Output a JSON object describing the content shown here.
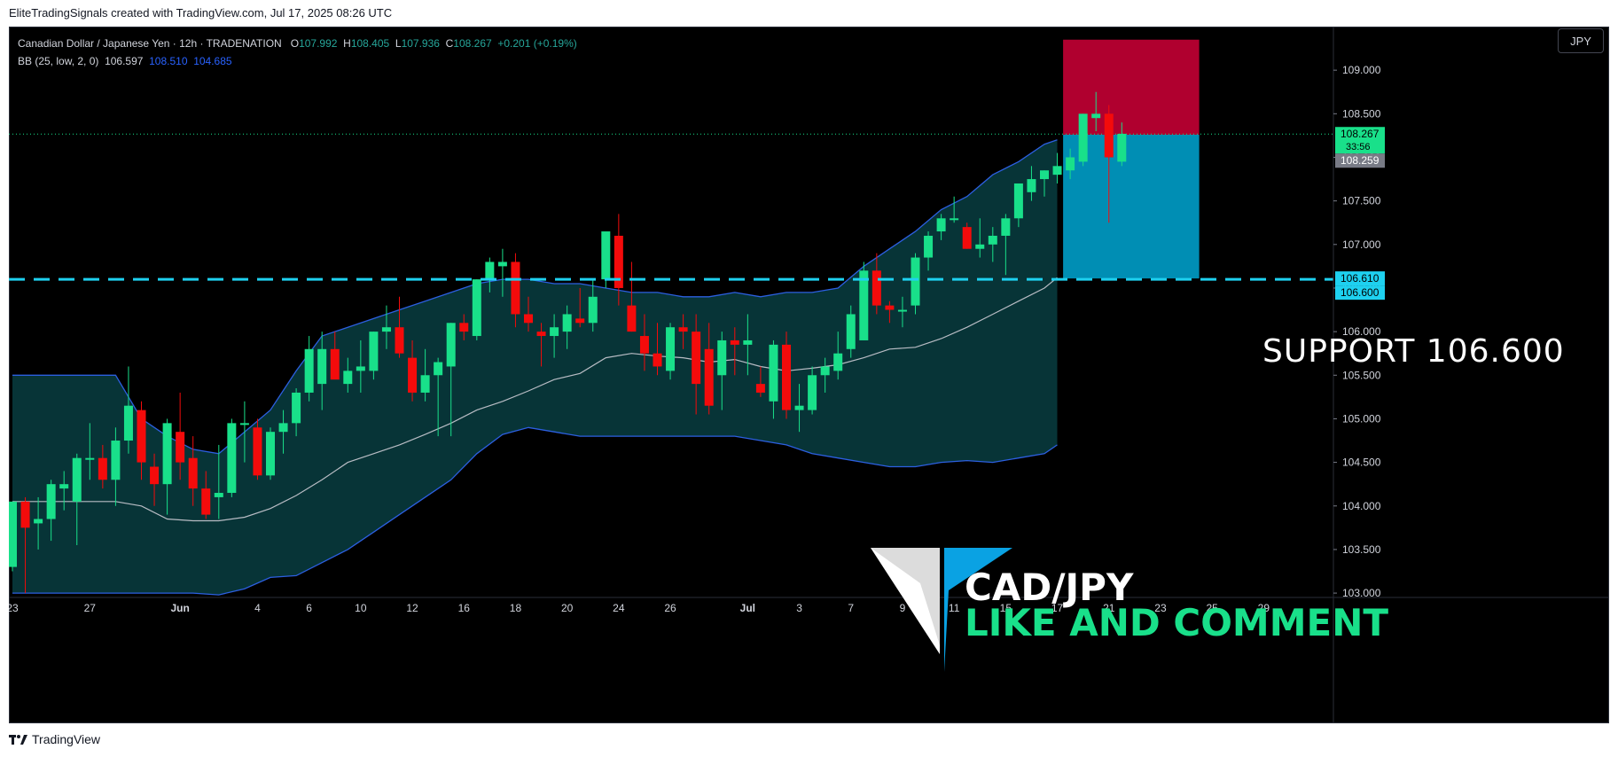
{
  "header": {
    "text": "EliteTradingSignals created with TradingView.com, Jul 17, 2025 08:26 UTC"
  },
  "legend": {
    "symbol": "Canadian Dollar / Japanese Yen · 12h · TRADENATION",
    "o_label": "O",
    "o_val": "107.992",
    "h_label": "H",
    "h_val": "108.405",
    "l_label": "L",
    "l_val": "107.936",
    "c_label": "C",
    "c_val": "108.267",
    "chg": "+0.201 (+0.19%)",
    "bb_label": "BB (25, low, 2, 0)",
    "bb_mid": "106.597",
    "bb_upper": "108.510",
    "bb_lower": "104.685"
  },
  "currency_button": "JPY",
  "annotations": {
    "support_text": "SUPPORT  106.600",
    "overlay_title": "CAD/JPY",
    "overlay_subtitle": "LIKE AND COMMENT"
  },
  "footer": {
    "brand": "TradingView"
  },
  "colors": {
    "bull": "#19e08a",
    "bear": "#f40b0b",
    "band_fill": "#073437",
    "band_line": "#2c5fe0",
    "basis_line": "#b8bcc4",
    "support_line": "#1ed1f0",
    "stop_zone": "#b0002f",
    "target_zone": "#008eb4"
  },
  "chart_data": {
    "type": "candlestick",
    "timeframe": "12h",
    "y_axis": {
      "range": [
        102.95,
        109.5
      ],
      "ticks": [
        "109.000",
        "108.500",
        "108.000",
        "107.500",
        "107.000",
        "106.500",
        "106.000",
        "105.500",
        "105.000",
        "104.500",
        "104.000",
        "103.500",
        "103.000"
      ],
      "price_labels": [
        {
          "text": "108.267",
          "sub": "33:56",
          "value": 108.267,
          "style": "current"
        },
        {
          "text": "108.259",
          "value": 108.259,
          "style": "grey"
        },
        {
          "text": "106.610",
          "value": 106.61,
          "style": "support"
        },
        {
          "text": "106.600",
          "value": 106.6,
          "style": "support"
        }
      ]
    },
    "x_axis": {
      "labels": [
        {
          "text": "23",
          "bar": 0
        },
        {
          "text": "27",
          "bar": 6
        },
        {
          "text": "Jun",
          "bar": 13
        },
        {
          "text": "4",
          "bar": 19
        },
        {
          "text": "6",
          "bar": 23
        },
        {
          "text": "10",
          "bar": 27
        },
        {
          "text": "12",
          "bar": 31
        },
        {
          "text": "16",
          "bar": 35
        },
        {
          "text": "18",
          "bar": 39
        },
        {
          "text": "20",
          "bar": 43
        },
        {
          "text": "24",
          "bar": 47
        },
        {
          "text": "26",
          "bar": 51
        },
        {
          "text": "Jul",
          "bar": 57
        },
        {
          "text": "3",
          "bar": 61
        },
        {
          "text": "7",
          "bar": 65
        },
        {
          "text": "9",
          "bar": 69
        },
        {
          "text": "11",
          "bar": 73
        },
        {
          "text": "15",
          "bar": 77
        },
        {
          "text": "17",
          "bar": 81
        },
        {
          "text": "21",
          "bar": 85
        },
        {
          "text": "23",
          "bar": 89
        },
        {
          "text": "25",
          "bar": 93
        },
        {
          "text": "29",
          "bar": 97
        }
      ]
    },
    "candles": [
      [
        103.3,
        104.05,
        103.25,
        104.05
      ],
      [
        104.05,
        104.1,
        103.0,
        103.75
      ],
      [
        103.8,
        104.1,
        103.5,
        103.85
      ],
      [
        103.85,
        104.3,
        103.6,
        104.25
      ],
      [
        104.2,
        104.4,
        103.95,
        104.25
      ],
      [
        104.05,
        104.6,
        103.55,
        104.55
      ],
      [
        104.55,
        104.95,
        104.3,
        104.55
      ],
      [
        104.55,
        104.7,
        104.2,
        104.3
      ],
      [
        104.3,
        104.9,
        104.0,
        104.75
      ],
      [
        104.75,
        105.6,
        104.6,
        105.15
      ],
      [
        105.1,
        105.2,
        104.3,
        104.5
      ],
      [
        104.45,
        104.6,
        104.0,
        104.25
      ],
      [
        104.25,
        105.0,
        103.9,
        104.95
      ],
      [
        104.85,
        105.3,
        104.3,
        104.5
      ],
      [
        104.55,
        104.8,
        104.0,
        104.2
      ],
      [
        104.2,
        104.4,
        103.85,
        103.9
      ],
      [
        104.1,
        104.7,
        103.85,
        104.15
      ],
      [
        104.15,
        105.0,
        104.1,
        104.95
      ],
      [
        104.95,
        105.2,
        104.5,
        104.95
      ],
      [
        104.9,
        105.0,
        104.3,
        104.35
      ],
      [
        104.35,
        104.9,
        104.3,
        104.85
      ],
      [
        104.85,
        105.1,
        104.6,
        104.95
      ],
      [
        104.95,
        105.35,
        104.8,
        105.3
      ],
      [
        105.3,
        105.95,
        105.2,
        105.8
      ],
      [
        105.4,
        106.0,
        105.1,
        105.8
      ],
      [
        105.8,
        106.0,
        105.5,
        105.45
      ],
      [
        105.4,
        105.7,
        105.3,
        105.55
      ],
      [
        105.55,
        105.9,
        105.3,
        105.6
      ],
      [
        105.55,
        106.0,
        105.45,
        106.0
      ],
      [
        106.0,
        106.3,
        105.8,
        106.05
      ],
      [
        106.05,
        106.4,
        105.7,
        105.75
      ],
      [
        105.7,
        105.9,
        105.2,
        105.3
      ],
      [
        105.3,
        105.8,
        105.2,
        105.5
      ],
      [
        105.5,
        105.7,
        104.8,
        105.65
      ],
      [
        105.6,
        106.1,
        104.8,
        106.1
      ],
      [
        106.1,
        106.2,
        105.9,
        106.0
      ],
      [
        105.95,
        106.6,
        105.9,
        106.6
      ],
      [
        106.6,
        106.85,
        106.45,
        106.8
      ],
      [
        106.75,
        106.95,
        106.4,
        106.8
      ],
      [
        106.8,
        106.9,
        106.05,
        106.2
      ],
      [
        106.2,
        106.4,
        106.0,
        106.1
      ],
      [
        106.0,
        106.1,
        105.6,
        105.95
      ],
      [
        105.95,
        106.2,
        105.7,
        106.05
      ],
      [
        106.0,
        106.3,
        105.8,
        106.2
      ],
      [
        106.15,
        106.5,
        106.05,
        106.1
      ],
      [
        106.1,
        106.6,
        106.0,
        106.4
      ],
      [
        106.6,
        107.1,
        106.5,
        107.15
      ],
      [
        107.1,
        107.35,
        106.3,
        106.5
      ],
      [
        106.3,
        106.8,
        106.0,
        106.0
      ],
      [
        105.95,
        106.2,
        105.55,
        105.75
      ],
      [
        105.75,
        106.1,
        105.5,
        105.6
      ],
      [
        105.55,
        106.1,
        105.45,
        106.05
      ],
      [
        106.05,
        106.2,
        105.8,
        106.0
      ],
      [
        106.0,
        106.2,
        105.05,
        105.4
      ],
      [
        105.8,
        106.1,
        105.05,
        105.15
      ],
      [
        105.5,
        106.0,
        105.1,
        105.9
      ],
      [
        105.9,
        106.05,
        105.5,
        105.85
      ],
      [
        105.85,
        106.2,
        105.5,
        105.9
      ],
      [
        105.4,
        105.6,
        105.25,
        105.3
      ],
      [
        105.2,
        105.9,
        105.0,
        105.85
      ],
      [
        105.85,
        106.0,
        105.0,
        105.1
      ],
      [
        105.1,
        105.4,
        104.85,
        105.15
      ],
      [
        105.1,
        105.6,
        105.05,
        105.5
      ],
      [
        105.5,
        105.7,
        105.3,
        105.6
      ],
      [
        105.55,
        106.0,
        105.45,
        105.75
      ],
      [
        105.8,
        106.3,
        105.7,
        106.2
      ],
      [
        105.9,
        106.8,
        105.9,
        106.7
      ],
      [
        106.7,
        106.9,
        106.2,
        106.3
      ],
      [
        106.3,
        106.35,
        106.1,
        106.25
      ],
      [
        106.25,
        106.4,
        106.05,
        106.25
      ],
      [
        106.3,
        106.9,
        106.2,
        106.85
      ],
      [
        106.85,
        107.15,
        106.7,
        107.1
      ],
      [
        107.15,
        107.35,
        107.05,
        107.3
      ],
      [
        107.3,
        107.55,
        107.25,
        107.3
      ],
      [
        107.2,
        107.25,
        106.95,
        106.95
      ],
      [
        106.95,
        107.3,
        106.85,
        107.0
      ],
      [
        107.0,
        107.2,
        106.8,
        107.1
      ],
      [
        107.1,
        107.35,
        106.65,
        107.3
      ],
      [
        107.3,
        107.7,
        107.2,
        107.7
      ],
      [
        107.6,
        107.9,
        107.5,
        107.75
      ],
      [
        107.75,
        107.85,
        107.55,
        107.85
      ],
      [
        107.8,
        108.05,
        107.7,
        107.9
      ],
      [
        107.85,
        108.1,
        107.75,
        108.0
      ],
      [
        107.95,
        108.5,
        107.9,
        108.5
      ],
      [
        108.45,
        108.75,
        108.3,
        108.5
      ],
      [
        108.5,
        108.6,
        107.25,
        108.0
      ],
      [
        107.95,
        108.4,
        107.9,
        108.27
      ]
    ],
    "bollinger": {
      "period": 25,
      "source": "low",
      "stdev": 2,
      "offset": 0,
      "upper": [
        [
          0,
          105.5
        ],
        [
          4,
          105.5
        ],
        [
          8,
          105.5
        ],
        [
          10,
          105.0
        ],
        [
          12,
          104.8
        ],
        [
          14,
          104.65
        ],
        [
          16,
          104.6
        ],
        [
          18,
          104.85
        ],
        [
          20,
          105.1
        ],
        [
          22,
          105.55
        ],
        [
          24,
          105.95
        ],
        [
          26,
          106.05
        ],
        [
          28,
          106.15
        ],
        [
          30,
          106.25
        ],
        [
          32,
          106.35
        ],
        [
          34,
          106.45
        ],
        [
          36,
          106.55
        ],
        [
          38,
          106.6
        ],
        [
          40,
          106.6
        ],
        [
          42,
          106.55
        ],
        [
          44,
          106.55
        ],
        [
          46,
          106.5
        ],
        [
          48,
          106.45
        ],
        [
          50,
          106.45
        ],
        [
          52,
          106.4
        ],
        [
          54,
          106.4
        ],
        [
          56,
          106.45
        ],
        [
          58,
          106.4
        ],
        [
          60,
          106.45
        ],
        [
          62,
          106.45
        ],
        [
          64,
          106.5
        ],
        [
          66,
          106.75
        ],
        [
          68,
          106.95
        ],
        [
          70,
          107.15
        ],
        [
          72,
          107.4
        ],
        [
          74,
          107.55
        ],
        [
          76,
          107.8
        ],
        [
          78,
          107.95
        ],
        [
          80,
          108.15
        ],
        [
          81,
          108.2
        ]
      ],
      "basis": [
        [
          0,
          104.05
        ],
        [
          4,
          104.05
        ],
        [
          8,
          104.05
        ],
        [
          10,
          104.0
        ],
        [
          12,
          103.85
        ],
        [
          14,
          103.83
        ],
        [
          16,
          103.83
        ],
        [
          18,
          103.87
        ],
        [
          20,
          103.97
        ],
        [
          22,
          104.12
        ],
        [
          24,
          104.3
        ],
        [
          26,
          104.5
        ],
        [
          28,
          104.6
        ],
        [
          30,
          104.7
        ],
        [
          32,
          104.82
        ],
        [
          34,
          104.95
        ],
        [
          36,
          105.1
        ],
        [
          38,
          105.2
        ],
        [
          40,
          105.32
        ],
        [
          42,
          105.45
        ],
        [
          44,
          105.52
        ],
        [
          46,
          105.7
        ],
        [
          48,
          105.75
        ],
        [
          50,
          105.72
        ],
        [
          52,
          105.7
        ],
        [
          54,
          105.65
        ],
        [
          56,
          105.68
        ],
        [
          58,
          105.6
        ],
        [
          60,
          105.55
        ],
        [
          62,
          105.58
        ],
        [
          64,
          105.62
        ],
        [
          66,
          105.7
        ],
        [
          68,
          105.8
        ],
        [
          70,
          105.82
        ],
        [
          72,
          105.92
        ],
        [
          74,
          106.05
        ],
        [
          76,
          106.2
        ],
        [
          78,
          106.35
        ],
        [
          80,
          106.5
        ],
        [
          81,
          106.62
        ]
      ],
      "lower": [
        [
          0,
          103.0
        ],
        [
          4,
          103.0
        ],
        [
          8,
          103.0
        ],
        [
          12,
          103.0
        ],
        [
          14,
          103.0
        ],
        [
          16,
          102.98
        ],
        [
          18,
          103.05
        ],
        [
          20,
          103.18
        ],
        [
          22,
          103.2
        ],
        [
          24,
          103.35
        ],
        [
          26,
          103.5
        ],
        [
          28,
          103.7
        ],
        [
          30,
          103.9
        ],
        [
          32,
          104.1
        ],
        [
          34,
          104.3
        ],
        [
          36,
          104.6
        ],
        [
          38,
          104.82
        ],
        [
          40,
          104.9
        ],
        [
          42,
          104.85
        ],
        [
          44,
          104.8
        ],
        [
          46,
          104.8
        ],
        [
          48,
          104.8
        ],
        [
          50,
          104.8
        ],
        [
          52,
          104.8
        ],
        [
          54,
          104.8
        ],
        [
          56,
          104.8
        ],
        [
          58,
          104.75
        ],
        [
          60,
          104.7
        ],
        [
          62,
          104.6
        ],
        [
          64,
          104.55
        ],
        [
          66,
          104.5
        ],
        [
          68,
          104.45
        ],
        [
          70,
          104.45
        ],
        [
          72,
          104.5
        ],
        [
          74,
          104.52
        ],
        [
          76,
          104.5
        ],
        [
          78,
          104.55
        ],
        [
          80,
          104.6
        ],
        [
          81,
          104.7
        ]
      ]
    },
    "support_level": 106.6,
    "current_price": 108.267,
    "position": {
      "side": "short",
      "entry": 108.259,
      "stop": 109.35,
      "target": 106.61,
      "bar_from": 82,
      "bar_to": 92
    }
  }
}
